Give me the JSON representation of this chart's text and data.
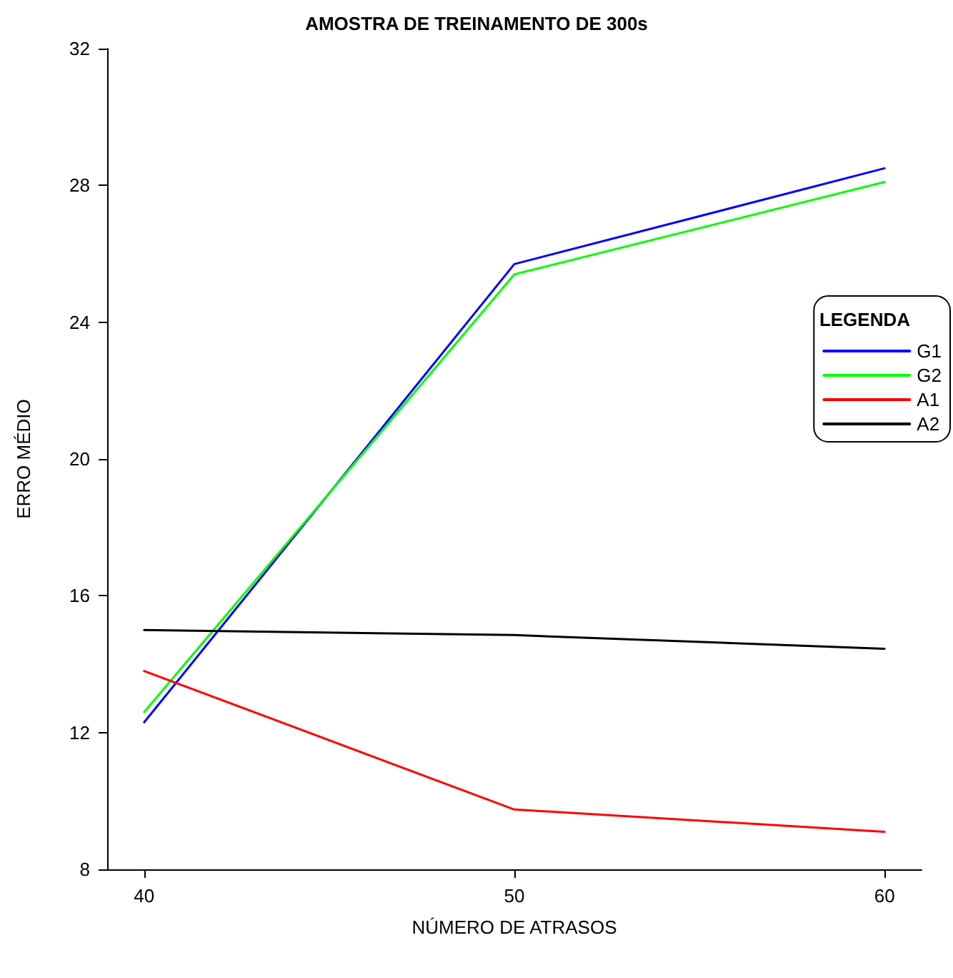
{
  "chart_data": {
    "type": "line",
    "title": "AMOSTRA DE TREINAMENTO DE 300s",
    "xlabel": "NÚMERO DE ATRASOS",
    "ylabel": "ERRO MÉDIO",
    "legend_title": "LEGENDA",
    "legend": "right",
    "grid": false,
    "marker": "none",
    "line_style": "solid",
    "x": [
      40,
      50,
      60
    ],
    "xlim": [
      39,
      61
    ],
    "xticks": [
      40,
      50,
      60
    ],
    "ylim": [
      8,
      32
    ],
    "yticks": [
      8,
      12,
      16,
      20,
      24,
      28,
      32
    ],
    "series": [
      {
        "name": "G1",
        "color": "#0000ff",
        "values": [
          12.3,
          25.7,
          28.5
        ]
      },
      {
        "name": "G2",
        "color": "#00ff00",
        "values": [
          12.6,
          25.4,
          28.1
        ]
      },
      {
        "name": "A1",
        "color": "#ff0000",
        "values": [
          13.8,
          9.75,
          9.1
        ]
      },
      {
        "name": "A2",
        "color": "#000000",
        "values": [
          15.0,
          14.85,
          14.45
        ]
      }
    ]
  }
}
